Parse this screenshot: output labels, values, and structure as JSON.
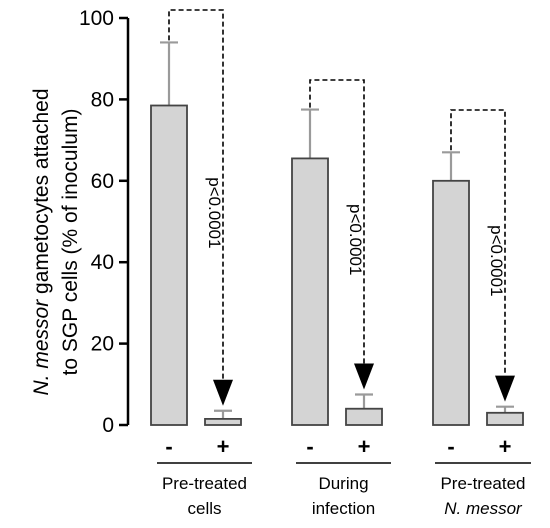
{
  "chart_data": {
    "type": "bar",
    "ylabel_line1_italic": "N. messor",
    "ylabel_line1_rest": " gametocytes attached",
    "ylabel_line2": "to SGP cells (% of inoculum)",
    "ylim": [
      0,
      100
    ],
    "yticks": [
      "0",
      "20",
      "40",
      "60",
      "80",
      "100"
    ],
    "bar_colors": {
      "fill": "#d4d4d4",
      "edge": "#444444",
      "error": "#9a9a9a"
    },
    "groups": [
      {
        "label_line1": "Pre-treated",
        "label_line2": "cells",
        "label_line2_italic": false,
        "bars": [
          {
            "sign": "-",
            "value": 78.5,
            "err": 15.5
          },
          {
            "sign": "+",
            "value": 1.5,
            "err": 2.0
          }
        ],
        "pvalue": "p<0.0001"
      },
      {
        "label_line1": "During",
        "label_line2": "infection",
        "label_line2_italic": false,
        "bars": [
          {
            "sign": "-",
            "value": 65.5,
            "err": 12.0
          },
          {
            "sign": "+",
            "value": 4.0,
            "err": 3.5
          }
        ],
        "pvalue": "p<0.0001"
      },
      {
        "label_line1": "Pre-treated",
        "label_line2": "N. messor",
        "label_line2_italic": true,
        "bars": [
          {
            "sign": "-",
            "value": 60.0,
            "err": 7.0
          },
          {
            "sign": "+",
            "value": 3.0,
            "err": 1.5
          }
        ],
        "pvalue": "p<0.0001"
      }
    ]
  }
}
